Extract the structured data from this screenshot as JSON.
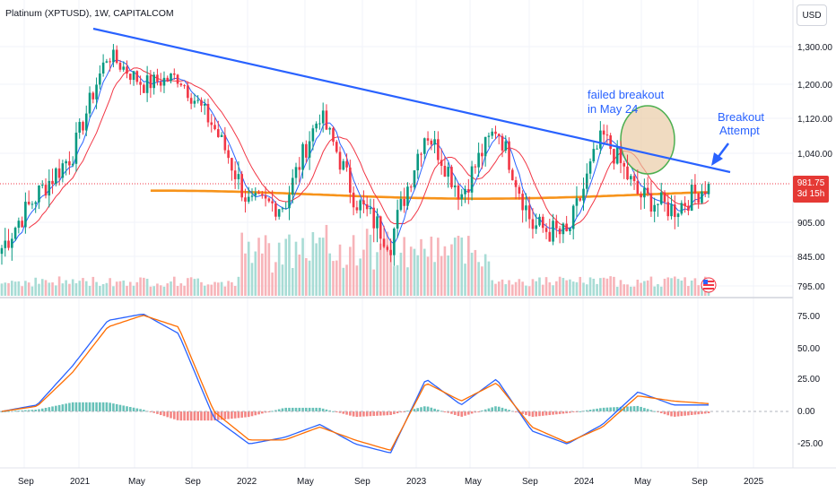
{
  "title": "Platinum (XPTUSD), 1W, CAPITALCOM",
  "currency": "USD",
  "price_tag": {
    "price": "981.75",
    "countdown": "3d 15h"
  },
  "annotations": {
    "failed_line1": "failed breakout",
    "failed_line2": "in May 24",
    "breakout_line1": "Breakout",
    "breakout_line2": "Attempt"
  },
  "colors": {
    "up": "#089981",
    "down": "#f23645",
    "trendline": "#2962ff",
    "ma_long": "#f7931a",
    "ma_red": "#f23645",
    "ma_blue": "#2962ff",
    "macd": "#2962ff",
    "signal": "#ff6d00",
    "vol_up": "#a8dcd5",
    "vol_down": "#f7b4b9",
    "highlight_fill": "#e8c8a0",
    "highlight_stroke": "#4caf50"
  },
  "chart_data": [
    {
      "type": "candlestick",
      "title": "Platinum (XPTUSD), 1W, CAPITALCOM",
      "ylabel": "USD",
      "x_ticks": [
        "Sep",
        "2021",
        "May",
        "Sep",
        "2022",
        "May",
        "Sep",
        "2023",
        "May",
        "Sep",
        "2024",
        "May",
        "Sep",
        "2025"
      ],
      "y_ticks": [
        "1,300.00",
        "1,200.00",
        "1,120.00",
        "1,040.00",
        "981.75",
        "905.00",
        "845.00",
        "795.00"
      ],
      "ylim": [
        780,
        1350
      ],
      "approximate_path": [
        {
          "x": "Sep 2020",
          "close": 860
        },
        {
          "x": "Nov 2020",
          "close": 960
        },
        {
          "x": "Dec 2020",
          "close": 1040
        },
        {
          "x": "Feb 2021",
          "close": 1280
        },
        {
          "x": "Mar 2021",
          "close": 1200
        },
        {
          "x": "May 2021",
          "close": 1220
        },
        {
          "x": "Jul 2021",
          "close": 1100
        },
        {
          "x": "Sep 2021",
          "close": 940
        },
        {
          "x": "Dec 2021",
          "close": 940
        },
        {
          "x": "Mar 2022",
          "close": 1130
        },
        {
          "x": "May 2022",
          "close": 950
        },
        {
          "x": "Sep 2022",
          "close": 870
        },
        {
          "x": "Jan 2023",
          "close": 1090
        },
        {
          "x": "Mar 2023",
          "close": 960
        },
        {
          "x": "May 2023",
          "close": 1100
        },
        {
          "x": "Sep 2023",
          "close": 900
        },
        {
          "x": "Feb 2024",
          "close": 880
        },
        {
          "x": "May 2024",
          "close": 1080
        },
        {
          "x": "Jul 2024",
          "close": 960
        },
        {
          "x": "Sep 2024",
          "close": 930
        },
        {
          "x": "Oct 2024",
          "close": 981.75
        }
      ],
      "last_price": 981.75,
      "trendline": {
        "from": {
          "x": "Feb 2021",
          "y": 1320
        },
        "to": {
          "x": "Oct 2024",
          "y": 1010
        }
      },
      "moving_average_long_level": 960
    },
    {
      "type": "line",
      "series": [
        {
          "name": "",
          "values": [
            0,
            5,
            35,
            70,
            75,
            60,
            -5,
            -25,
            -20,
            -10,
            -25,
            -32,
            25,
            5,
            25,
            -15,
            -25,
            -10,
            15,
            5,
            5
          ]
        },
        {
          "name": "",
          "values": [
            0,
            4,
            30,
            65,
            74,
            65,
            0,
            -22,
            -22,
            -12,
            -22,
            -30,
            22,
            8,
            22,
            -12,
            -24,
            -12,
            12,
            8,
            6
          ]
        }
      ],
      "y_ticks": [
        "75.00",
        "50.00",
        "25.00",
        "0.00",
        "-25.00"
      ],
      "ylim": [
        -35,
        80
      ]
    }
  ]
}
